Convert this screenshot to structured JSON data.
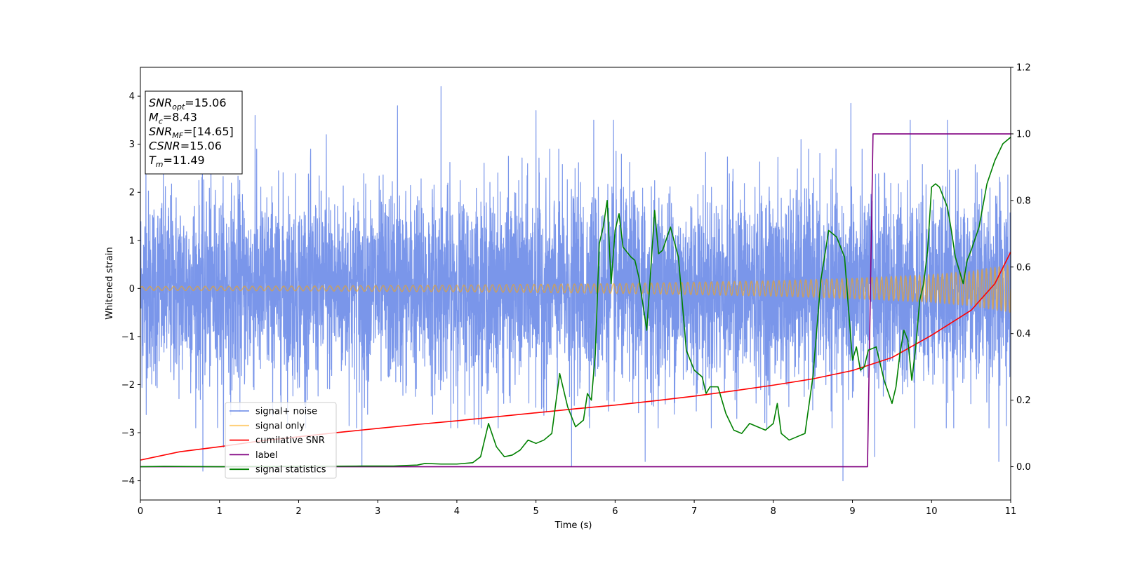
{
  "chart_data": {
    "type": "line",
    "title": "",
    "xlabel": "Time (s)",
    "ylabel": "Whitened strain",
    "ylabel_right": "",
    "xlim": [
      0,
      11
    ],
    "ylim": [
      -4.4,
      4.6
    ],
    "ylim_right": [
      -0.1,
      1.2
    ],
    "x_ticks": [
      0,
      1,
      2,
      3,
      4,
      5,
      6,
      7,
      8,
      9,
      10,
      11
    ],
    "y_ticks": [
      -4,
      -3,
      -2,
      -1,
      0,
      1,
      2,
      3,
      4
    ],
    "y_tick_labels": [
      "−4",
      "−3",
      "−2",
      "−1",
      "0",
      "1",
      "2",
      "3",
      "4"
    ],
    "y_right_ticks": [
      0.0,
      0.2,
      0.4,
      0.6,
      0.8,
      1.0,
      1.2
    ],
    "y_right_tick_labels": [
      "0.0",
      "0.2",
      "0.4",
      "0.6",
      "0.8",
      "1.0",
      "1.2"
    ],
    "grid": false,
    "legend_position": "lower-left",
    "annotation": {
      "lines": [
        {
          "name": "SNR",
          "sub": "opt",
          "value": "=15.06"
        },
        {
          "name": "M",
          "sub": "c",
          "value": "=8.43"
        },
        {
          "name": "SNR",
          "sub": "MF",
          "value": "=[14.65]"
        },
        {
          "name": "CSNR",
          "sub": "",
          "value": "=15.06"
        },
        {
          "name": "T",
          "sub": "m",
          "value": "=11.49"
        }
      ]
    },
    "series": [
      {
        "name": "signal+ noise",
        "color": "#4169e1",
        "axis": "left",
        "kind": "noisy-strain",
        "sample_spacing": 0.002,
        "noise_std": 1.0,
        "peaks": [
          [
            0.07,
            2.9
          ],
          [
            0.79,
            -3.8
          ],
          [
            1.05,
            -3.3
          ],
          [
            1.45,
            3.6
          ],
          [
            2.15,
            2.7
          ],
          [
            2.35,
            3.2
          ],
          [
            2.8,
            -3.7
          ],
          [
            3.25,
            3.8
          ],
          [
            3.8,
            4.2
          ],
          [
            5.0,
            3.7
          ],
          [
            5.45,
            -3.7
          ],
          [
            5.73,
            3.5
          ],
          [
            5.98,
            3.5
          ],
          [
            6.38,
            -3.6
          ],
          [
            8.35,
            3.1
          ],
          [
            8.88,
            -4.0
          ],
          [
            8.98,
            3.85
          ],
          [
            9.28,
            -3.5
          ],
          [
            9.73,
            3.5
          ],
          [
            10.2,
            3.5
          ],
          [
            10.85,
            -3.6
          ]
        ]
      },
      {
        "name": "signal only",
        "color": "#ffa500",
        "axis": "left",
        "kind": "chirp",
        "amplitude_envelope": {
          "x": [
            0,
            2,
            4,
            6,
            8,
            9,
            10,
            10.5,
            11
          ],
          "y": [
            0.04,
            0.05,
            0.07,
            0.1,
            0.16,
            0.21,
            0.29,
            0.36,
            0.5
          ]
        }
      },
      {
        "name": "cumilative SNR",
        "color": "#ff0000",
        "axis": "right",
        "x": [
          0,
          0.5,
          1,
          1.5,
          2,
          2.5,
          3,
          3.5,
          4,
          4.5,
          5,
          5.5,
          6,
          6.5,
          7,
          7.5,
          8,
          8.5,
          9,
          9.5,
          10,
          10.5,
          10.8,
          11
        ],
        "y": [
          0.02,
          0.045,
          0.06,
          0.077,
          0.09,
          0.103,
          0.115,
          0.127,
          0.138,
          0.15,
          0.162,
          0.174,
          0.185,
          0.198,
          0.212,
          0.228,
          0.245,
          0.264,
          0.289,
          0.328,
          0.395,
          0.47,
          0.55,
          0.645
        ]
      },
      {
        "name": "label",
        "color": "#800080",
        "axis": "right",
        "x": [
          0,
          9.19,
          9.26,
          11
        ],
        "y": [
          0,
          0,
          1,
          1
        ]
      },
      {
        "name": "signal statistics",
        "color": "#008000",
        "axis": "right",
        "x": [
          0,
          0.3,
          1,
          2,
          2.8,
          3.2,
          3.5,
          3.6,
          3.8,
          4.0,
          4.2,
          4.3,
          4.4,
          4.5,
          4.6,
          4.7,
          4.8,
          4.9,
          5.0,
          5.1,
          5.2,
          5.3,
          5.4,
          5.5,
          5.6,
          5.65,
          5.7,
          5.75,
          5.8,
          5.85,
          5.9,
          5.95,
          6.0,
          6.05,
          6.1,
          6.2,
          6.25,
          6.3,
          6.4,
          6.5,
          6.55,
          6.6,
          6.7,
          6.8,
          6.9,
          7.0,
          7.1,
          7.15,
          7.2,
          7.3,
          7.4,
          7.5,
          7.6,
          7.7,
          7.8,
          7.9,
          8.0,
          8.05,
          8.1,
          8.2,
          8.3,
          8.4,
          8.5,
          8.6,
          8.7,
          8.8,
          8.9,
          9.0,
          9.05,
          9.1,
          9.15,
          9.2,
          9.3,
          9.4,
          9.5,
          9.55,
          9.6,
          9.65,
          9.7,
          9.75,
          9.8,
          9.85,
          9.9,
          9.95,
          10.0,
          10.05,
          10.1,
          10.2,
          10.25,
          10.3,
          10.4,
          10.45,
          10.5,
          10.6,
          10.7,
          10.8,
          10.9,
          11.0
        ],
        "y": [
          0.0,
          0.001,
          0.0,
          0.001,
          0.002,
          0.002,
          0.005,
          0.01,
          0.008,
          0.008,
          0.012,
          0.03,
          0.13,
          0.06,
          0.03,
          0.035,
          0.05,
          0.08,
          0.07,
          0.08,
          0.1,
          0.28,
          0.18,
          0.12,
          0.14,
          0.22,
          0.2,
          0.34,
          0.67,
          0.72,
          0.8,
          0.55,
          0.71,
          0.76,
          0.66,
          0.63,
          0.62,
          0.57,
          0.41,
          0.77,
          0.64,
          0.65,
          0.72,
          0.63,
          0.35,
          0.29,
          0.27,
          0.22,
          0.24,
          0.24,
          0.16,
          0.11,
          0.1,
          0.13,
          0.12,
          0.11,
          0.13,
          0.19,
          0.1,
          0.08,
          0.09,
          0.1,
          0.27,
          0.56,
          0.71,
          0.69,
          0.63,
          0.32,
          0.36,
          0.29,
          0.3,
          0.35,
          0.36,
          0.26,
          0.19,
          0.24,
          0.34,
          0.41,
          0.38,
          0.26,
          0.36,
          0.5,
          0.55,
          0.65,
          0.84,
          0.85,
          0.84,
          0.78,
          0.71,
          0.63,
          0.55,
          0.62,
          0.65,
          0.72,
          0.85,
          0.92,
          0.97,
          0.99
        ]
      }
    ]
  }
}
